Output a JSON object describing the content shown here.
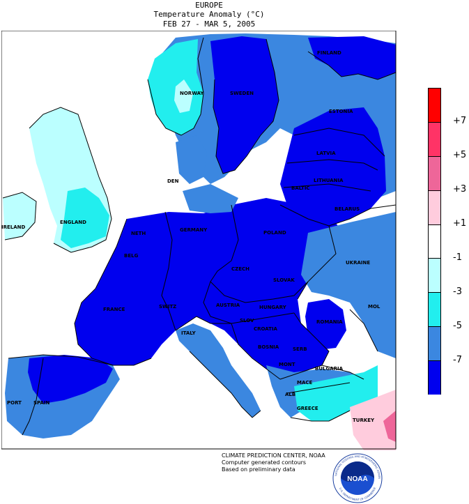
{
  "header": {
    "region": "EUROPE",
    "subtitle": "Temperature Anomaly (°C)",
    "period": "FEB 27 - MAR  5, 2005"
  },
  "legend": {
    "colors": [
      "#ff0000",
      "#ff3366",
      "#ee6699",
      "#ffccdd",
      "#ffffff",
      "#bbffff",
      "#22eeee",
      "#3b87e0",
      "#0000ee"
    ],
    "ticks": [
      "+7",
      "+5",
      "+3",
      "+1",
      "-1",
      "-3",
      "-5",
      "-7"
    ]
  },
  "countries": {
    "finland": "FINLAND",
    "sweden": "SWEDEN",
    "norway": "NORWAY",
    "estonia": "ESTONIA",
    "latvia": "LATVIA",
    "lithuania": "LITHUANIA",
    "baltic": "BALTIC",
    "belarus": "BELARUS",
    "den": "DEN",
    "england": "ENGLAND",
    "ireland": "IRELAND",
    "neth": "NETH",
    "belg": "BELG",
    "germany": "GERMANY",
    "poland": "POLAND",
    "ukraine": "UKRAINE",
    "czech": "CZECH",
    "slovak": "SLOVAK",
    "france": "FRANCE",
    "switz": "SWITZ",
    "austria": "AUSTRIA",
    "hungary": "HUNGARY",
    "romania": "ROMANIA",
    "mol": "MOL",
    "slov": "SLOV",
    "croatia": "CROATIA",
    "italy": "ITALY",
    "bosnia": "BOSNIA",
    "serb": "SERB",
    "mont": "MONT",
    "bulgaria": "BULGARIA",
    "mace": "MACE",
    "alb": "ALB",
    "greece": "GREECE",
    "turkey": "TURKEY",
    "spain": "SPAIN",
    "port": "PORT"
  },
  "credit": {
    "line1": "CLIMATE PREDICTION CENTER, NOAA",
    "line2": "Computer generated contours",
    "line3": "Based on preliminary data"
  },
  "logo": {
    "text": "NOAA",
    "ring_top": "NATIONAL OCEANIC AND ATMOSPHERIC ADMINISTRATION",
    "ring_bottom": "U.S. DEPARTMENT OF COMMERCE"
  }
}
